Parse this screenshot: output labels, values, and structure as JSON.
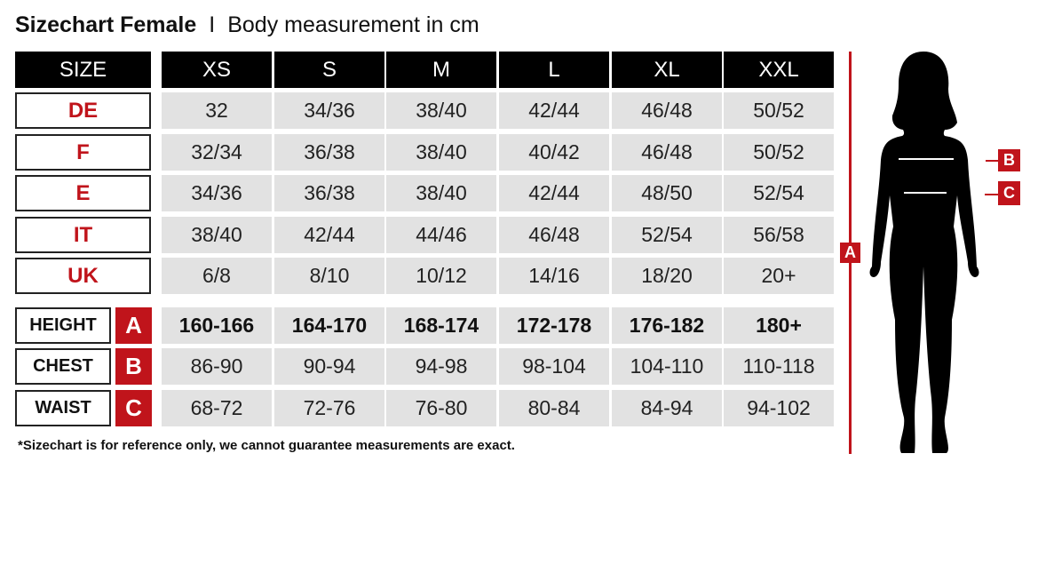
{
  "title": {
    "bold": "Sizechart Female",
    "separator": "I",
    "subtitle": "Body measurement in cm"
  },
  "colors": {
    "accent": "#c0141b",
    "header": "#000000",
    "cell": "#e2e2e2"
  },
  "table": {
    "size_label": "SIZE",
    "sizes": [
      "XS",
      "S",
      "M",
      "L",
      "XL",
      "XXL"
    ],
    "conversion_rows": [
      {
        "label": "DE",
        "values": [
          "32",
          "34/36",
          "38/40",
          "42/44",
          "46/48",
          "50/52"
        ]
      },
      {
        "label": "F",
        "values": [
          "32/34",
          "36/38",
          "38/40",
          "40/42",
          "46/48",
          "50/52"
        ]
      },
      {
        "label": "E",
        "values": [
          "34/36",
          "36/38",
          "38/40",
          "42/44",
          "48/50",
          "52/54"
        ]
      },
      {
        "label": "IT",
        "values": [
          "38/40",
          "42/44",
          "44/46",
          "46/48",
          "52/54",
          "56/58"
        ]
      },
      {
        "label": "UK",
        "values": [
          "6/8",
          "8/10",
          "10/12",
          "14/16",
          "18/20",
          "20+"
        ]
      }
    ],
    "measurement_rows": [
      {
        "label": "HEIGHT",
        "letter": "A",
        "values": [
          "160-166",
          "164-170",
          "168-174",
          "172-178",
          "176-182",
          "180+"
        ]
      },
      {
        "label": "CHEST",
        "letter": "B",
        "values": [
          "86-90",
          "90-94",
          "94-98",
          "98-104",
          "104-110",
          "110-118"
        ]
      },
      {
        "label": "WAIST",
        "letter": "C",
        "values": [
          "68-72",
          "72-76",
          "76-80",
          "80-84",
          "84-94",
          "94-102"
        ]
      }
    ]
  },
  "footnote": "*Sizechart is for reference only, we cannot guarantee measurements are exact.",
  "figure": {
    "height_marker": "A",
    "chest_marker": "B",
    "waist_marker": "C",
    "icon": "female-silhouette"
  }
}
